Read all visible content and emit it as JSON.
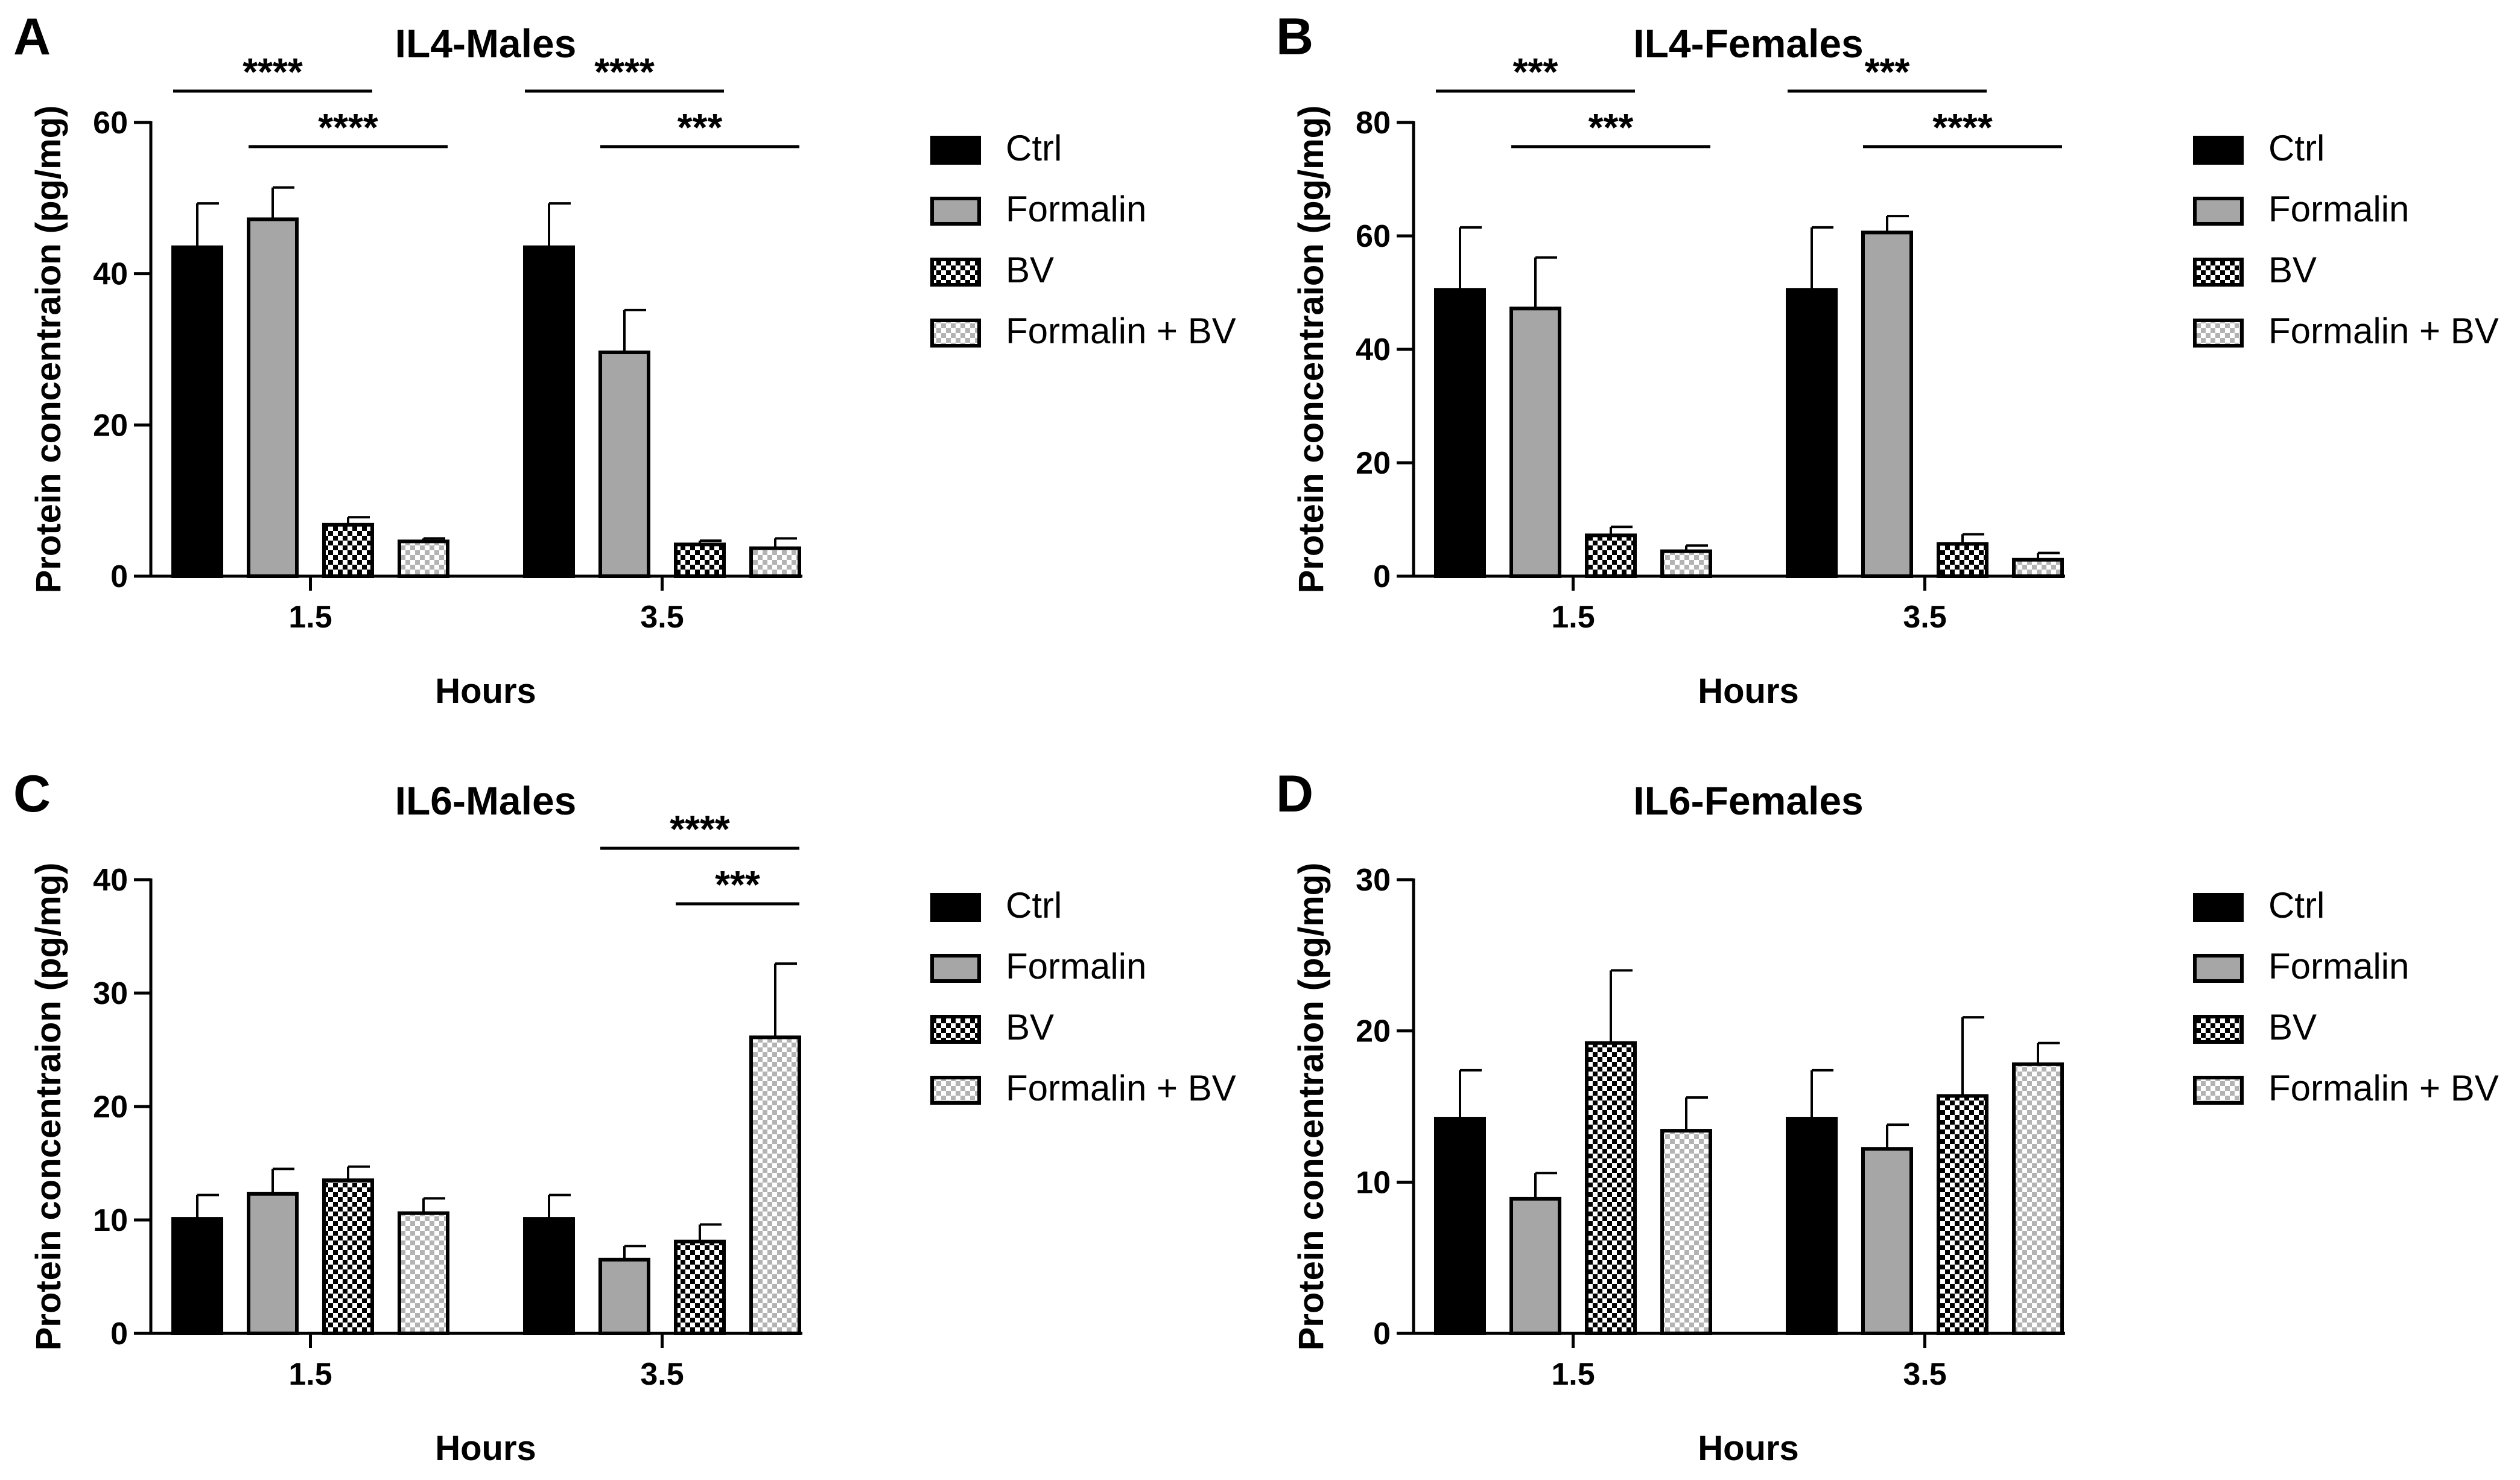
{
  "colors": {
    "ctrl": "#000000",
    "formalin": "#a6a6a6",
    "axis": "#000000",
    "checker_dark": "#000000",
    "checker_light": "#ffffff",
    "checker_grey": "#b3b3b3"
  },
  "series_names": [
    "Ctrl",
    "Formalin",
    "BV",
    "Formalin + BV"
  ],
  "series_patterns": [
    "solid-black",
    "solid-grey",
    "checker-black-white",
    "checker-grey-white"
  ],
  "chart_data": [
    {
      "panel": "A",
      "type": "bar",
      "title": "IL4-Males",
      "xlabel": "Hours",
      "ylabel": "Protein concentraion (pg/mg)",
      "categories": [
        "1.5",
        "3.5"
      ],
      "ylim": [
        0,
        60
      ],
      "yticks": [
        0,
        20,
        40,
        60
      ],
      "legend": "right",
      "series": [
        {
          "name": "Ctrl",
          "values": [
            43.5,
            43.5
          ],
          "errors": [
            5.8,
            5.8
          ]
        },
        {
          "name": "Formalin",
          "values": [
            47.2,
            29.6
          ],
          "errors": [
            4.2,
            5.6
          ]
        },
        {
          "name": "BV",
          "values": [
            6.8,
            4.2
          ],
          "errors": [
            1.0,
            0.5
          ]
        },
        {
          "name": "Formalin + BV",
          "values": [
            4.6,
            3.7
          ],
          "errors": [
            0.4,
            1.3
          ]
        }
      ],
      "significance": [
        {
          "category": "1.5",
          "from": "Ctrl",
          "to": "BV",
          "label": "****",
          "level": 1
        },
        {
          "category": "1.5",
          "from": "Formalin",
          "to": "Formalin + BV",
          "label": "****",
          "level": 0
        },
        {
          "category": "3.5",
          "from": "Ctrl",
          "to": "BV",
          "label": "****",
          "level": 1
        },
        {
          "category": "3.5",
          "from": "Formalin",
          "to": "Formalin + BV",
          "label": "***",
          "level": 0
        }
      ]
    },
    {
      "panel": "B",
      "type": "bar",
      "title": "IL4-Females",
      "xlabel": "Hours",
      "ylabel": "Protein concentraion (pg/mg)",
      "categories": [
        "1.5",
        "3.5"
      ],
      "ylim": [
        0,
        80
      ],
      "yticks": [
        0,
        20,
        40,
        60,
        80
      ],
      "legend": "right",
      "series": [
        {
          "name": "Ctrl",
          "values": [
            50.5,
            50.5
          ],
          "errors": [
            11.0,
            11.0
          ]
        },
        {
          "name": "Formalin",
          "values": [
            47.2,
            60.6
          ],
          "errors": [
            9.0,
            2.9
          ]
        },
        {
          "name": "BV",
          "values": [
            7.2,
            5.7
          ],
          "errors": [
            1.5,
            1.7
          ]
        },
        {
          "name": "Formalin + BV",
          "values": [
            4.4,
            2.9
          ],
          "errors": [
            1.0,
            1.2
          ]
        }
      ],
      "significance": [
        {
          "category": "1.5",
          "from": "Ctrl",
          "to": "BV",
          "label": "***",
          "level": 1
        },
        {
          "category": "1.5",
          "from": "Formalin",
          "to": "Formalin + BV",
          "label": "***",
          "level": 0
        },
        {
          "category": "3.5",
          "from": "Ctrl",
          "to": "BV",
          "label": "***",
          "level": 1
        },
        {
          "category": "3.5",
          "from": "Formalin",
          "to": "Formalin + BV",
          "label": "****",
          "level": 0
        }
      ]
    },
    {
      "panel": "C",
      "type": "bar",
      "title": "IL6-Males",
      "xlabel": "Hours",
      "ylabel": "Protein concentraion (pg/mg)",
      "categories": [
        "1.5",
        "3.5"
      ],
      "ylim": [
        0,
        40
      ],
      "yticks": [
        0,
        10,
        20,
        30,
        40
      ],
      "legend": "right",
      "series": [
        {
          "name": "Ctrl",
          "values": [
            10.1,
            10.1
          ],
          "errors": [
            2.1,
            2.1
          ]
        },
        {
          "name": "Formalin",
          "values": [
            12.3,
            6.5
          ],
          "errors": [
            2.2,
            1.2
          ]
        },
        {
          "name": "BV",
          "values": [
            13.5,
            8.1
          ],
          "errors": [
            1.2,
            1.5
          ]
        },
        {
          "name": "Formalin + BV",
          "values": [
            10.6,
            26.1
          ],
          "errors": [
            1.3,
            6.5
          ]
        }
      ],
      "significance": [
        {
          "category": "3.5",
          "from": "Formalin",
          "to": "Formalin + BV",
          "label": "****",
          "level": 1
        },
        {
          "category": "3.5",
          "from": "BV",
          "to": "Formalin + BV",
          "label": "***",
          "level": 0
        }
      ]
    },
    {
      "panel": "D",
      "type": "bar",
      "title": "IL6-Females",
      "xlabel": "Hours",
      "ylabel": "Protein concentraion (pg/mg)",
      "categories": [
        "1.5",
        "3.5"
      ],
      "ylim": [
        0,
        30
      ],
      "yticks": [
        0,
        10,
        20,
        30
      ],
      "legend": "right",
      "series": [
        {
          "name": "Ctrl",
          "values": [
            14.2,
            14.2
          ],
          "errors": [
            3.2,
            3.2
          ]
        },
        {
          "name": "Formalin",
          "values": [
            8.9,
            12.2
          ],
          "errors": [
            1.7,
            1.6
          ]
        },
        {
          "name": "BV",
          "values": [
            19.2,
            15.7
          ],
          "errors": [
            4.8,
            5.2
          ]
        },
        {
          "name": "Formalin + BV",
          "values": [
            13.4,
            17.8
          ],
          "errors": [
            2.2,
            1.4
          ]
        }
      ],
      "significance": []
    }
  ]
}
